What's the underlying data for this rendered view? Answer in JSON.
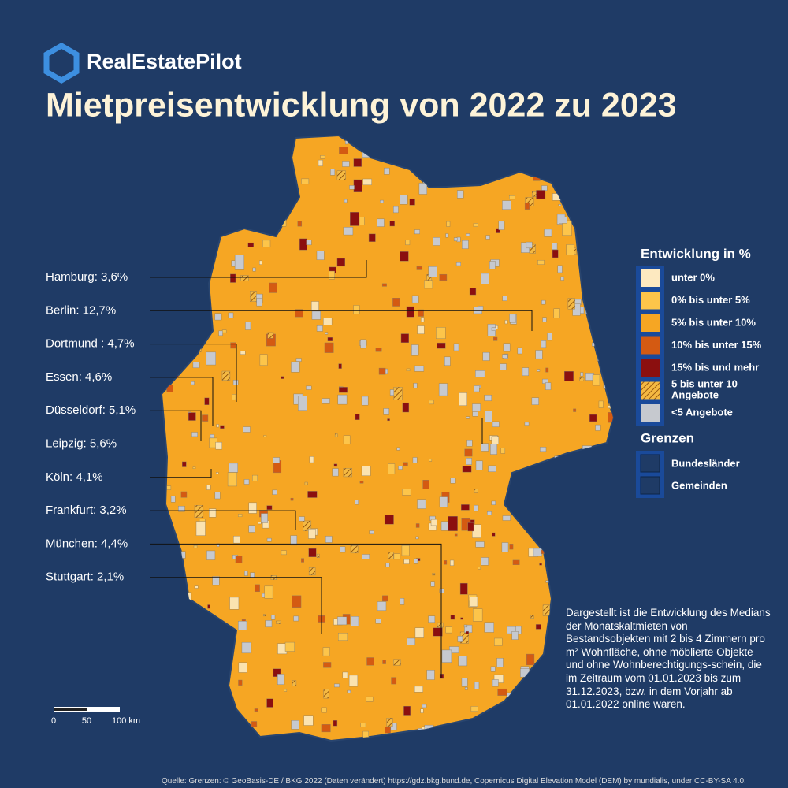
{
  "brand": "RealEstatePilot",
  "title": "Mietpreisentwicklung von 2022 zu 2023",
  "cities": [
    "Hamburg: 3,6%",
    "Berlin: 12,7%",
    "Dortmund : 4,7%",
    "Essen: 4,6%",
    "Düsseldorf: 5,1%",
    "Leipzig: 5,6%",
    "Köln: 4,1%",
    "Frankfurt: 3,2%",
    "München: 4,4%",
    "Stuttgart: 2,1%"
  ],
  "legend": {
    "title": "Entwicklung in %",
    "items": [
      "unter 0%",
      "0% bis unter 5%",
      "5% bis unter 10%",
      "10% bis unter 15%",
      "15% bis und mehr",
      "5 bis unter 10 Angebote",
      "<5 Angebote"
    ],
    "borders_title": "Grenzen",
    "borders": [
      "Bundesländer",
      "Gemeinden"
    ]
  },
  "scale": [
    "0",
    "50",
    "100 km"
  ],
  "description": "Dargestellt ist die Entwicklung des Medians der Monatskaltmieten von Bestandsobjekten mit 2 bis 4 Zimmern pro m² Wohnfläche, ohne möblierte Objekte und ohne Wohnberechtigungs-schein, die im Zeitraum vom 01.01.2023 bis zum 31.12.2023, bzw. in dem Vorjahr ab 01.01.2022 online waren.",
  "source": "Quelle: Grenzen: © GeoBasis-DE / BKG 2022 (Daten verändert) https://gdz.bkg.bund.de, Copernicus Digital Elevation Model (DEM) by mundialis, under CC-BY-SA 4.0."
}
